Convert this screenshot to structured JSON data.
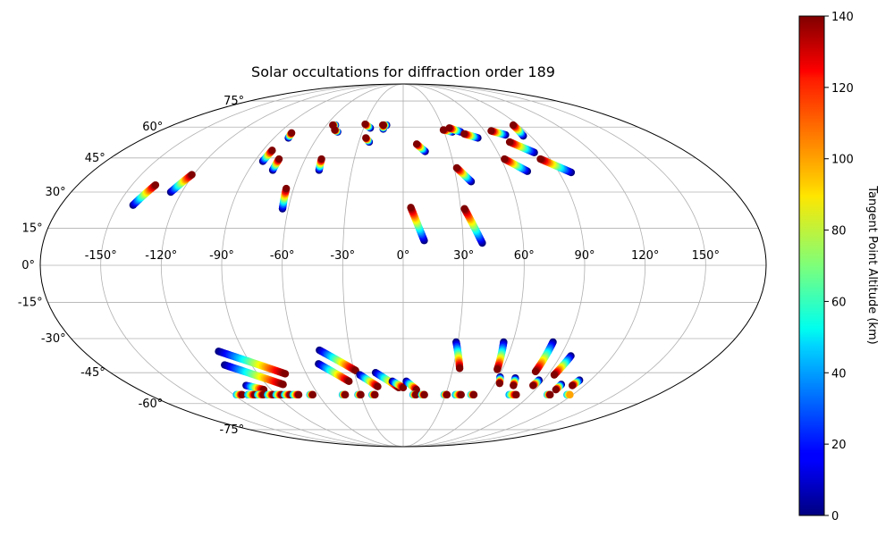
{
  "chart_data": {
    "type": "scatter",
    "projection": "mollweide",
    "title": "Solar occultations for diffraction order 189",
    "xlabel": "",
    "ylabel": "",
    "grid": true,
    "lon_ticks": [
      -150,
      -120,
      -90,
      -60,
      -30,
      0,
      30,
      60,
      90,
      120,
      150
    ],
    "lon_tick_labels": [
      "-150°",
      "-120°",
      "-90°",
      "-60°",
      "-30°",
      "0°",
      "30°",
      "60°",
      "90°",
      "120°",
      "150°"
    ],
    "lat_ticks": [
      75,
      60,
      45,
      30,
      15,
      0,
      -15,
      -30,
      -45,
      -60,
      -75
    ],
    "lat_tick_labels": [
      "75°",
      "60°",
      "45°",
      "30°",
      "15°",
      "0°",
      "-15°",
      "-30°",
      "-45°",
      "-60°",
      "-75°"
    ],
    "colorbar": {
      "label": "Tangent Point Altitude (km)",
      "min": 0,
      "max": 140,
      "ticks": [
        0,
        20,
        40,
        60,
        80,
        100,
        120,
        140
      ],
      "tick_labels": [
        "0",
        "20",
        "40",
        "60",
        "80",
        "100",
        "120",
        "140"
      ],
      "colormap": "jet"
    },
    "series": [
      {
        "name": "track",
        "start": {
          "lon": -142,
          "lat": 24.5,
          "alt": 0
        },
        "end": {
          "lon": -137,
          "lat": 33,
          "alt": 140
        }
      },
      {
        "name": "track",
        "start": {
          "lon": -126,
          "lat": 30,
          "alt": 0
        },
        "end": {
          "lon": -121,
          "lat": 37.5,
          "alt": 140
        }
      },
      {
        "name": "track",
        "start": {
          "lon": -85,
          "lat": 43.5,
          "alt": 0
        },
        "end": {
          "lon": -84,
          "lat": 48.5,
          "alt": 140
        }
      },
      {
        "name": "track",
        "start": {
          "lon": -76,
          "lat": 39.5,
          "alt": 0
        },
        "end": {
          "lon": -76,
          "lat": 44.5,
          "alt": 140
        }
      },
      {
        "name": "track",
        "start": {
          "lon": -80,
          "lat": 54.5,
          "alt": 0
        },
        "end": {
          "lon": -81,
          "lat": 57,
          "alt": 140
        }
      },
      {
        "name": "track",
        "start": {
          "lon": -63,
          "lat": 23,
          "alt": 0
        },
        "end": {
          "lon": -64,
          "lat": 31.5,
          "alt": 140
        }
      },
      {
        "name": "track",
        "start": {
          "lon": -49,
          "lat": 39.5,
          "alt": 0
        },
        "end": {
          "lon": -50,
          "lat": 44.5,
          "alt": 140
        }
      },
      {
        "name": "track",
        "start": {
          "lon": -53,
          "lat": 61,
          "alt": 0
        },
        "end": {
          "lon": -55,
          "lat": 61,
          "alt": 140
        }
      },
      {
        "name": "track",
        "start": {
          "lon": -48,
          "lat": 57.5,
          "alt": 0
        },
        "end": {
          "lon": -51,
          "lat": 58.5,
          "alt": 140
        }
      },
      {
        "name": "track",
        "start": {
          "lon": -25,
          "lat": 59.5,
          "alt": 0
        },
        "end": {
          "lon": -30,
          "lat": 61.5,
          "alt": 140
        }
      },
      {
        "name": "track",
        "start": {
          "lon": -23,
          "lat": 52.5,
          "alt": 0
        },
        "end": {
          "lon": -26,
          "lat": 54.5,
          "alt": 140
        }
      },
      {
        "name": "track",
        "start": {
          "lon": -13,
          "lat": 61,
          "alt": 0
        },
        "end": {
          "lon": -16,
          "lat": 61,
          "alt": 140
        }
      },
      {
        "name": "track",
        "start": {
          "lon": -15,
          "lat": 59,
          "alt": 0
        },
        "end": {
          "lon": -15.5,
          "lat": 61,
          "alt": 140
        }
      },
      {
        "name": "track",
        "start": {
          "lon": 14,
          "lat": 48,
          "alt": 0
        },
        "end": {
          "lon": 9,
          "lat": 51.5,
          "alt": 140
        }
      },
      {
        "name": "track",
        "start": {
          "lon": 10.5,
          "lat": 10,
          "alt": 0
        },
        "end": {
          "lon": 4,
          "lat": 23.5,
          "alt": 140
        }
      },
      {
        "name": "track",
        "start": {
          "lon": 36,
          "lat": 57.5,
          "alt": 0
        },
        "end": {
          "lon": 30,
          "lat": 58.5,
          "alt": 140
        }
      },
      {
        "name": "track",
        "start": {
          "lon": 42,
          "lat": 57.5,
          "alt": 0
        },
        "end": {
          "lon": 35,
          "lat": 59.5,
          "alt": 140
        }
      },
      {
        "name": "track",
        "start": {
          "lon": 52,
          "lat": 54.5,
          "alt": 0
        },
        "end": {
          "lon": 44,
          "lat": 56.5,
          "alt": 140
        }
      },
      {
        "name": "track",
        "start": {
          "lon": 38,
          "lat": 34.5,
          "alt": 0
        },
        "end": {
          "lon": 31.5,
          "lat": 40.5,
          "alt": 140
        }
      },
      {
        "name": "track",
        "start": {
          "lon": 39.5,
          "lat": 9,
          "alt": 0
        },
        "end": {
          "lon": 32,
          "lat": 23,
          "alt": 140
        }
      },
      {
        "name": "track",
        "start": {
          "lon": 73,
          "lat": 56,
          "alt": 0
        },
        "end": {
          "lon": 65,
          "lat": 58,
          "alt": 140
        }
      },
      {
        "name": "track",
        "start": {
          "lon": 85,
          "lat": 55.5,
          "alt": 0
        },
        "end": {
          "lon": 86,
          "lat": 61,
          "alt": 140
        }
      },
      {
        "name": "track",
        "start": {
          "lon": 83,
          "lat": 47.5,
          "alt": 0
        },
        "end": {
          "lon": 72,
          "lat": 52.5,
          "alt": 140
        }
      },
      {
        "name": "track",
        "start": {
          "lon": 72,
          "lat": 39,
          "alt": 0
        },
        "end": {
          "lon": 62,
          "lat": 44.5,
          "alt": 140
        }
      },
      {
        "name": "track",
        "start": {
          "lon": 97,
          "lat": 38.5,
          "alt": 0
        },
        "end": {
          "lon": 84,
          "lat": 44.5,
          "alt": 140
        }
      },
      {
        "name": "track",
        "start": {
          "lon": -104,
          "lat": -35.5,
          "alt": 0
        },
        "end": {
          "lon": -73,
          "lat": -45.5,
          "alt": 140
        }
      },
      {
        "name": "track",
        "start": {
          "lon": -106,
          "lat": -41.5,
          "alt": 0
        },
        "end": {
          "lon": -79,
          "lat": -50.5,
          "alt": 140
        }
      },
      {
        "name": "track",
        "start": {
          "lon": -47,
          "lat": -35,
          "alt": 0
        },
        "end": {
          "lon": -29,
          "lat": -44,
          "alt": 140
        }
      },
      {
        "name": "track",
        "start": {
          "lon": -50,
          "lat": -41,
          "alt": 0
        },
        "end": {
          "lon": -35,
          "lat": -49,
          "alt": 140
        }
      },
      {
        "name": "track",
        "start": {
          "lon": -27,
          "lat": -46,
          "alt": 0
        },
        "end": {
          "lon": -17,
          "lat": -51.5,
          "alt": 140
        }
      },
      {
        "name": "track",
        "start": {
          "lon": -17,
          "lat": -45,
          "alt": 0
        },
        "end": {
          "lon": -3,
          "lat": -52,
          "alt": 140
        }
      },
      {
        "name": "track",
        "start": {
          "lon": -7,
          "lat": -49,
          "alt": 0
        },
        "end": {
          "lon": 0,
          "lat": -52,
          "alt": 140
        }
      },
      {
        "name": "track",
        "start": {
          "lon": 2,
          "lat": -49,
          "alt": 0
        },
        "end": {
          "lon": 9,
          "lat": -53,
          "alt": 140
        }
      },
      {
        "name": "track",
        "start": {
          "lon": 29,
          "lat": -31.5,
          "alt": 0
        },
        "end": {
          "lon": 34,
          "lat": -43,
          "alt": 140
        }
      },
      {
        "name": "track",
        "start": {
          "lon": 55,
          "lat": -31.5,
          "alt": 0
        },
        "end": {
          "lon": 57,
          "lat": -43.5,
          "alt": 140
        }
      },
      {
        "name": "track",
        "start": {
          "lon": 82,
          "lat": -31.5,
          "alt": 0
        },
        "end": {
          "lon": 81,
          "lat": -44.5,
          "alt": 140
        }
      },
      {
        "name": "track",
        "start": {
          "lon": 96,
          "lat": -37.5,
          "alt": 0
        },
        "end": {
          "lon": 94,
          "lat": -46,
          "alt": 140
        }
      },
      {
        "name": "track",
        "start": {
          "lon": 61,
          "lat": -47,
          "alt": 0
        },
        "end": {
          "lon": 63,
          "lat": -50,
          "alt": 140
        }
      },
      {
        "name": "track",
        "start": {
          "lon": 71,
          "lat": -47.5,
          "alt": 0
        },
        "end": {
          "lon": 73,
          "lat": -51,
          "alt": 140
        }
      },
      {
        "name": "track",
        "start": {
          "lon": 87,
          "lat": -48.5,
          "alt": 0
        },
        "end": {
          "lon": 86,
          "lat": -51,
          "alt": 140
        }
      },
      {
        "name": "track",
        "start": {
          "lon": -104,
          "lat": -51,
          "alt": 0
        },
        "end": {
          "lon": -95,
          "lat": -53,
          "alt": 140
        }
      },
      {
        "name": "track",
        "start": {
          "lon": 113,
          "lat": -48.5,
          "alt": 0
        },
        "end": {
          "lon": 112,
          "lat": -51,
          "alt": 140
        }
      },
      {
        "name": "track",
        "start": {
          "lon": 104,
          "lat": -50.5,
          "alt": 0
        },
        "end": {
          "lon": 104,
          "lat": -53,
          "alt": 140
        }
      },
      {
        "name": "track",
        "start": {
          "lon": -118,
          "lat": -55.5,
          "alt": 40
        },
        "end": {
          "lon": -114,
          "lat": -55.5,
          "alt": 140
        }
      },
      {
        "name": "track",
        "start": {
          "lon": -110,
          "lat": -55.5,
          "alt": 40
        },
        "end": {
          "lon": -105,
          "lat": -55.5,
          "alt": 140
        }
      },
      {
        "name": "track",
        "start": {
          "lon": -103,
          "lat": -55.5,
          "alt": 40
        },
        "end": {
          "lon": -99,
          "lat": -55.5,
          "alt": 140
        }
      },
      {
        "name": "track",
        "start": {
          "lon": -96,
          "lat": -55.5,
          "alt": 40
        },
        "end": {
          "lon": -92,
          "lat": -55.5,
          "alt": 140
        }
      },
      {
        "name": "track",
        "start": {
          "lon": -90,
          "lat": -55.5,
          "alt": 40
        },
        "end": {
          "lon": -86,
          "lat": -55.5,
          "alt": 140
        }
      },
      {
        "name": "track",
        "start": {
          "lon": -84,
          "lat": -55.5,
          "alt": 40
        },
        "end": {
          "lon": -80,
          "lat": -55.5,
          "alt": 140
        }
      },
      {
        "name": "track",
        "start": {
          "lon": -78,
          "lat": -55.5,
          "alt": 40
        },
        "end": {
          "lon": -74,
          "lat": -55.5,
          "alt": 140
        }
      },
      {
        "name": "track",
        "start": {
          "lon": -66,
          "lat": -55.5,
          "alt": 40
        },
        "end": {
          "lon": -64,
          "lat": -55.5,
          "alt": 140
        }
      },
      {
        "name": "track",
        "start": {
          "lon": -43,
          "lat": -55.5,
          "alt": 40
        },
        "end": {
          "lon": -41,
          "lat": -55.5,
          "alt": 140
        }
      },
      {
        "name": "track",
        "start": {
          "lon": -32,
          "lat": -55.5,
          "alt": 40
        },
        "end": {
          "lon": -30,
          "lat": -55.5,
          "alt": 140
        }
      },
      {
        "name": "track",
        "start": {
          "lon": -22,
          "lat": -55.5,
          "alt": 40
        },
        "end": {
          "lon": -20,
          "lat": -55.5,
          "alt": 140
        }
      },
      {
        "name": "track",
        "start": {
          "lon": 7,
          "lat": -55.5,
          "alt": 40
        },
        "end": {
          "lon": 9,
          "lat": -55.5,
          "alt": 140
        }
      },
      {
        "name": "track",
        "start": {
          "lon": 13,
          "lat": -55.5,
          "alt": 40
        },
        "end": {
          "lon": 15,
          "lat": -55.5,
          "alt": 140
        }
      },
      {
        "name": "track",
        "start": {
          "lon": 29,
          "lat": -55.5,
          "alt": 40
        },
        "end": {
          "lon": 31,
          "lat": -55.5,
          "alt": 140
        }
      },
      {
        "name": "track",
        "start": {
          "lon": 37,
          "lat": -55.5,
          "alt": 40
        },
        "end": {
          "lon": 41,
          "lat": -55.5,
          "alt": 140
        }
      },
      {
        "name": "track",
        "start": {
          "lon": 48,
          "lat": -55.5,
          "alt": 40
        },
        "end": {
          "lon": 50,
          "lat": -55.5,
          "alt": 140
        }
      },
      {
        "name": "track",
        "start": {
          "lon": 75,
          "lat": -55.5,
          "alt": 40
        },
        "end": {
          "lon": 80,
          "lat": -55.5,
          "alt": 140
        }
      },
      {
        "name": "track",
        "start": {
          "lon": 102,
          "lat": -55.5,
          "alt": 40
        },
        "end": {
          "lon": 104,
          "lat": -55.5,
          "alt": 140
        }
      },
      {
        "name": "track",
        "start": {
          "lon": 116,
          "lat": -55.5,
          "alt": 40
        },
        "end": {
          "lon": 118,
          "lat": -55.5,
          "alt": 100
        }
      }
    ]
  }
}
